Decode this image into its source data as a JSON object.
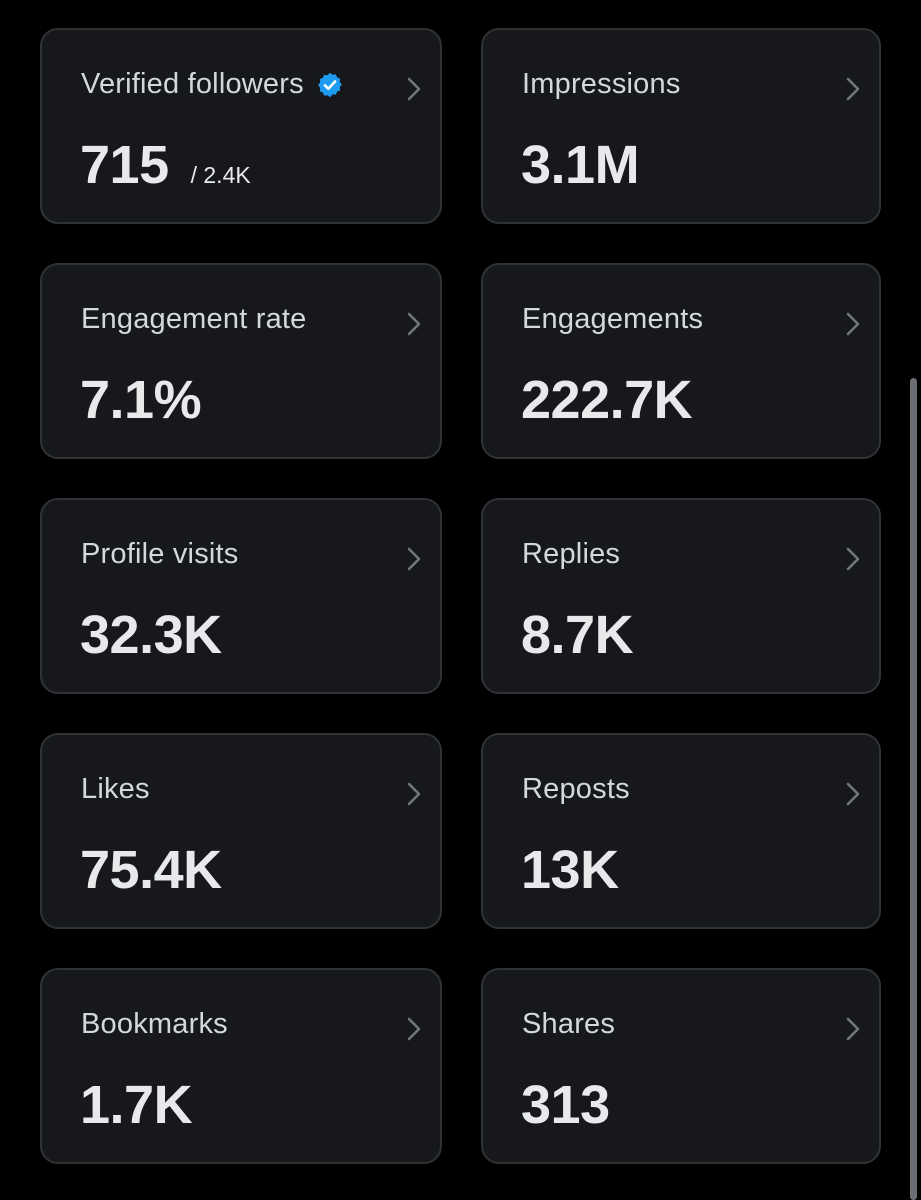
{
  "cards": [
    {
      "label": "Verified followers",
      "value": "715",
      "sub": "/ 2.4K",
      "badge_icon": "verified-badge-icon",
      "badge_color": "#1d9bf0"
    },
    {
      "label": "Impressions",
      "value": "3.1M"
    },
    {
      "label": "Engagement rate",
      "value": "7.1%"
    },
    {
      "label": "Engagements",
      "value": "222.7K"
    },
    {
      "label": "Profile visits",
      "value": "32.3K"
    },
    {
      "label": "Replies",
      "value": "8.7K"
    },
    {
      "label": "Likes",
      "value": "75.4K"
    },
    {
      "label": "Reposts",
      "value": "13K"
    },
    {
      "label": "Bookmarks",
      "value": "1.7K"
    },
    {
      "label": "Shares",
      "value": "313"
    }
  ],
  "icons": {
    "chevron": "chevron-right-icon"
  }
}
